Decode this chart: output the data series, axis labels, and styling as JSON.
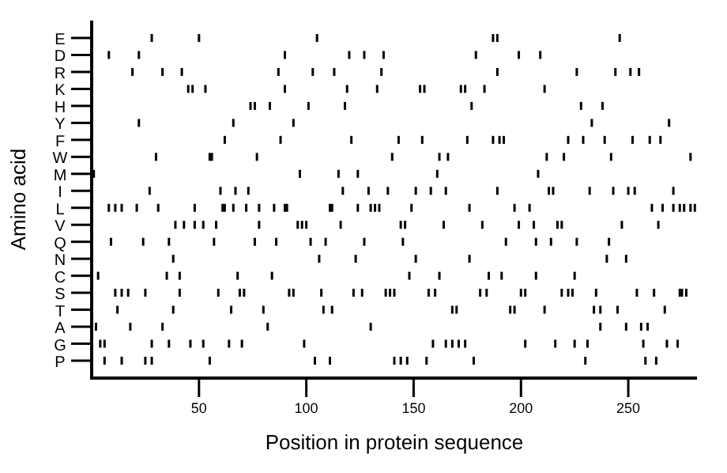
{
  "chart_data": {
    "type": "scatter",
    "orientation": "horizontal",
    "xlabel": "Position in protein sequence",
    "ylabel": "Amino acid",
    "xlim": [
      0,
      282
    ],
    "xticks": [
      50,
      100,
      150,
      200,
      250
    ],
    "categories": [
      "E",
      "D",
      "R",
      "K",
      "H",
      "Y",
      "F",
      "W",
      "M",
      "I",
      "L",
      "V",
      "Q",
      "N",
      "C",
      "S",
      "T",
      "A",
      "G",
      "P"
    ],
    "series": [
      {
        "color": "#000000",
        "values": [
          28,
          50,
          105,
          187,
          189,
          246
        ],
        "x": [
          "E",
          "E",
          "E",
          "E",
          "E",
          "E"
        ]
      },
      {
        "color": "#000000",
        "values": [
          8,
          22,
          90,
          120,
          127,
          136,
          179,
          199,
          209
        ],
        "x": [
          "D",
          "D",
          "D",
          "D",
          "D",
          "D",
          "D",
          "D",
          "D"
        ]
      },
      {
        "color": "#000000",
        "values": [
          19,
          33,
          42,
          87,
          103,
          113,
          135,
          189,
          226,
          244,
          251,
          255
        ],
        "x": [
          "R",
          "R",
          "R",
          "R",
          "R",
          "R",
          "R",
          "R",
          "R",
          "R",
          "R",
          "R"
        ]
      },
      {
        "color": "#000000",
        "values": [
          45,
          47,
          53,
          90,
          119,
          133,
          153,
          155,
          172,
          174,
          183,
          211
        ],
        "x": [
          "K",
          "K",
          "K",
          "K",
          "K",
          "K",
          "K",
          "K",
          "K",
          "K",
          "K",
          "K"
        ]
      },
      {
        "color": "#000000",
        "values": [
          74,
          76,
          83,
          101,
          118,
          177,
          228,
          238
        ],
        "x": [
          "H",
          "H",
          "H",
          "H",
          "H",
          "H",
          "H",
          "H"
        ]
      },
      {
        "color": "#000000",
        "values": [
          22,
          66,
          94,
          233,
          269
        ],
        "x": [
          "Y",
          "Y",
          "Y",
          "Y",
          "Y"
        ]
      },
      {
        "color": "#000000",
        "values": [
          62,
          88,
          121,
          143,
          154,
          175,
          187,
          190,
          192,
          222,
          229,
          239,
          252,
          260,
          265
        ],
        "x": [
          "F",
          "F",
          "F",
          "F",
          "F",
          "F",
          "F",
          "F",
          "F",
          "F",
          "F",
          "F",
          "F",
          "F",
          "F"
        ]
      },
      {
        "color": "#000000",
        "values": [
          30,
          55,
          56,
          77,
          140,
          162,
          166,
          212,
          220,
          242,
          279
        ],
        "x": [
          "W",
          "W",
          "W",
          "W",
          "W",
          "W",
          "W",
          "W",
          "W",
          "W",
          "W"
        ]
      },
      {
        "color": "#000000",
        "values": [
          1,
          97,
          115,
          124,
          161,
          208
        ],
        "x": [
          "M",
          "M",
          "M",
          "M",
          "M",
          "M"
        ]
      },
      {
        "color": "#000000",
        "values": [
          27,
          60,
          67,
          73,
          117,
          129,
          138,
          151,
          158,
          165,
          189,
          213,
          215,
          232,
          243,
          250,
          253,
          271
        ],
        "x": [
          "I",
          "I",
          "I",
          "I",
          "I",
          "I",
          "I",
          "I",
          "I",
          "I",
          "I",
          "I",
          "I",
          "I",
          "I",
          "I",
          "I",
          "I"
        ]
      },
      {
        "color": "#000000",
        "values": [
          8,
          11,
          14,
          21,
          31,
          48,
          61,
          62,
          66,
          72,
          78,
          85,
          90,
          91,
          111,
          112,
          124,
          130,
          132,
          134,
          149,
          176,
          197,
          204,
          261,
          266,
          271,
          274,
          276,
          279,
          281
        ],
        "x": [
          "L",
          "L",
          "L",
          "L",
          "L",
          "L",
          "L",
          "L",
          "L",
          "L",
          "L",
          "L",
          "L",
          "L",
          "L",
          "L",
          "L",
          "L",
          "L",
          "L",
          "L",
          "L",
          "L",
          "L",
          "L",
          "L",
          "L",
          "L",
          "L",
          "L",
          "L"
        ]
      },
      {
        "color": "#000000",
        "values": [
          39,
          43,
          48,
          52,
          58,
          78,
          96,
          98,
          100,
          116,
          144,
          146,
          164,
          182,
          199,
          206,
          217,
          219,
          247,
          264
        ],
        "x": [
          "V",
          "V",
          "V",
          "V",
          "V",
          "V",
          "V",
          "V",
          "V",
          "V",
          "V",
          "V",
          "V",
          "V",
          "V",
          "V",
          "V",
          "V",
          "V",
          "V"
        ]
      },
      {
        "color": "#000000",
        "values": [
          9,
          24,
          36,
          57,
          76,
          86,
          102,
          109,
          127,
          145,
          193,
          207,
          214,
          226,
          241
        ],
        "x": [
          "Q",
          "Q",
          "Q",
          "Q",
          "Q",
          "Q",
          "Q",
          "Q",
          "Q",
          "Q",
          "Q",
          "Q",
          "Q",
          "Q",
          "Q"
        ]
      },
      {
        "color": "#000000",
        "values": [
          38,
          106,
          123,
          151,
          176,
          240,
          249
        ],
        "x": [
          "N",
          "N",
          "N",
          "N",
          "N",
          "N",
          "N"
        ]
      },
      {
        "color": "#000000",
        "values": [
          3,
          35,
          41,
          68,
          84,
          148,
          162,
          185,
          191,
          207,
          225
        ],
        "x": [
          "C",
          "C",
          "C",
          "C",
          "C",
          "C",
          "C",
          "C",
          "C",
          "C",
          "C"
        ]
      },
      {
        "color": "#000000",
        "values": [
          11,
          14,
          17,
          25,
          41,
          59,
          69,
          71,
          92,
          94,
          107,
          122,
          126,
          137,
          139,
          141,
          157,
          160,
          181,
          184,
          200,
          202,
          219,
          222,
          224,
          235,
          254,
          262,
          274,
          275,
          277
        ],
        "x": [
          "S",
          "S",
          "S",
          "S",
          "S",
          "S",
          "S",
          "S",
          "S",
          "S",
          "S",
          "S",
          "S",
          "S",
          "S",
          "S",
          "S",
          "S",
          "S",
          "S",
          "S",
          "S",
          "S",
          "S",
          "S",
          "S",
          "S",
          "S",
          "S",
          "S",
          "S"
        ]
      },
      {
        "color": "#000000",
        "values": [
          12,
          38,
          65,
          80,
          108,
          112,
          168,
          170,
          195,
          197,
          211,
          234,
          237,
          245,
          267
        ],
        "x": [
          "T",
          "T",
          "T",
          "T",
          "T",
          "T",
          "T",
          "T",
          "T",
          "T",
          "T",
          "T",
          "T",
          "T",
          "T"
        ]
      },
      {
        "color": "#000000",
        "values": [
          2,
          18,
          33,
          82,
          130,
          237,
          249,
          256,
          259
        ],
        "x": [
          "A",
          "A",
          "A",
          "A",
          "A",
          "A",
          "A",
          "A",
          "A"
        ]
      },
      {
        "color": "#000000",
        "values": [
          4,
          6,
          28,
          36,
          46,
          52,
          64,
          70,
          99,
          159,
          165,
          168,
          171,
          174,
          202,
          216,
          225,
          231,
          257,
          268,
          273
        ],
        "x": [
          "G",
          "G",
          "G",
          "G",
          "G",
          "G",
          "G",
          "G",
          "G",
          "G",
          "G",
          "G",
          "G",
          "G",
          "G",
          "G",
          "G",
          "G",
          "G",
          "G",
          "G"
        ]
      },
      {
        "color": "#000000",
        "values": [
          6,
          14,
          25,
          28,
          55,
          104,
          111,
          141,
          144,
          147,
          156,
          178,
          230,
          258,
          263
        ],
        "x": [
          "P",
          "P",
          "P",
          "P",
          "P",
          "P",
          "P",
          "P",
          "P",
          "P",
          "P",
          "P",
          "P",
          "P",
          "P"
        ]
      }
    ]
  }
}
